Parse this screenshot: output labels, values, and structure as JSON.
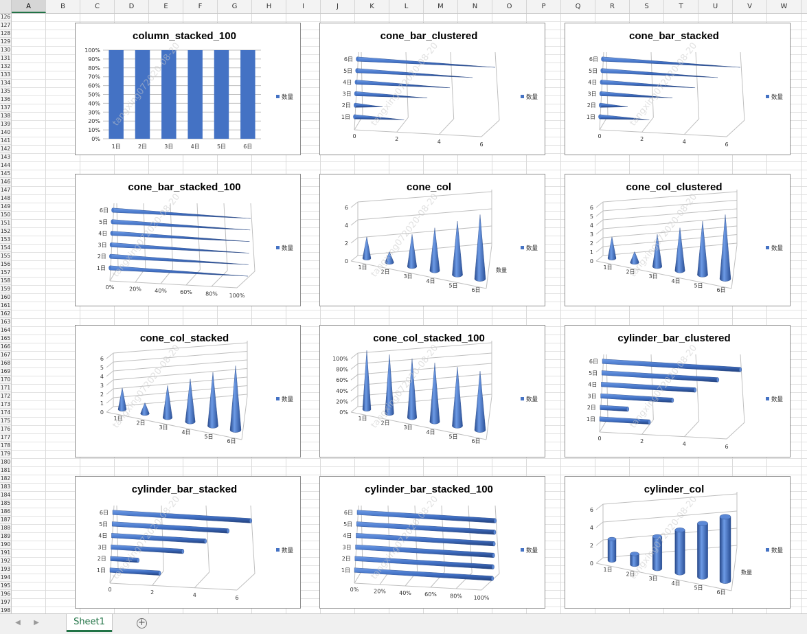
{
  "columns": [
    "A",
    "B",
    "C",
    "D",
    "E",
    "F",
    "G",
    "H",
    "I",
    "J",
    "K",
    "L",
    "M",
    "N",
    "O",
    "P",
    "Q",
    "R",
    "S",
    "T",
    "U",
    "V",
    "W"
  ],
  "selected_column": "A",
  "first_row": 126,
  "row_count": 77,
  "sheet_tab": "Sheet1",
  "add_sheet_symbol": "+",
  "watermark": "tangxing072020-08-20",
  "legend_label": "数量",
  "accent_color": "#4472C4",
  "charts": [
    {
      "title": "column_stacked_100",
      "type": "column_stacked_100"
    },
    {
      "title": "cone_bar_clustered",
      "type": "cone_bar_clustered"
    },
    {
      "title": "cone_bar_stacked",
      "type": "cone_bar_stacked"
    },
    {
      "title": "cone_bar_stacked_100",
      "type": "cone_bar_stacked_100"
    },
    {
      "title": "cone_col",
      "type": "cone_col"
    },
    {
      "title": "cone_col_clustered",
      "type": "cone_col_clustered"
    },
    {
      "title": "cone_col_stacked",
      "type": "cone_col_stacked"
    },
    {
      "title": "cone_col_stacked_100",
      "type": "cone_col_stacked_100"
    },
    {
      "title": "cylinder_bar_clustered",
      "type": "cylinder_bar_clustered"
    },
    {
      "title": "cylinder_bar_stacked",
      "type": "cylinder_bar_stacked"
    },
    {
      "title": "cylinder_bar_stacked_100",
      "type": "cylinder_bar_stacked_100"
    },
    {
      "title": "cylinder_col",
      "type": "cylinder_col"
    }
  ],
  "chart_data": [
    {
      "type": "bar",
      "title": "column_stacked_100",
      "categories": [
        "1日",
        "2日",
        "3日",
        "4日",
        "5日",
        "6日"
      ],
      "series": [
        {
          "name": "数量",
          "values": [
            100,
            100,
            100,
            100,
            100,
            100
          ]
        }
      ],
      "ylim": [
        0,
        100
      ],
      "yticks": [
        "0%",
        "10%",
        "20%",
        "30%",
        "40%",
        "50%",
        "60%",
        "70%",
        "80%",
        "90%",
        "100%"
      ],
      "legend": "right"
    },
    {
      "type": "bar",
      "title": "cone_bar_clustered",
      "categories": [
        "1日",
        "2日",
        "3日",
        "4日",
        "5日",
        "6日"
      ],
      "series": [
        {
          "name": "数量",
          "values": [
            2,
            1,
            3,
            4,
            5,
            6
          ]
        }
      ],
      "xlim": [
        0,
        6
      ],
      "xticks": [
        "0",
        "2",
        "4",
        "6"
      ],
      "legend": "right"
    },
    {
      "type": "bar",
      "title": "cone_bar_stacked",
      "categories": [
        "1日",
        "2日",
        "3日",
        "4日",
        "5日",
        "6日"
      ],
      "series": [
        {
          "name": "数量",
          "values": [
            2,
            1,
            3,
            4,
            5,
            6
          ]
        }
      ],
      "xlim": [
        0,
        6
      ],
      "xticks": [
        "0",
        "2",
        "4",
        "6"
      ],
      "legend": "right"
    },
    {
      "type": "bar",
      "title": "cone_bar_stacked_100",
      "categories": [
        "1日",
        "2日",
        "3日",
        "4日",
        "5日",
        "6日"
      ],
      "series": [
        {
          "name": "数量",
          "values": [
            100,
            100,
            100,
            100,
            100,
            100
          ]
        }
      ],
      "xlim": [
        0,
        100
      ],
      "xticks": [
        "0%",
        "20%",
        "40%",
        "60%",
        "80%",
        "100%"
      ],
      "legend": "right"
    },
    {
      "type": "bar",
      "title": "cone_col",
      "categories": [
        "1日",
        "2日",
        "3日",
        "4日",
        "5日",
        "6日"
      ],
      "series": [
        {
          "name": "数量",
          "values": [
            2,
            1,
            3,
            4,
            5,
            6
          ]
        }
      ],
      "ylim": [
        0,
        6
      ],
      "yticks": [
        "0",
        "2",
        "4",
        "6"
      ],
      "depth_label": "数量",
      "legend": "right"
    },
    {
      "type": "bar",
      "title": "cone_col_clustered",
      "categories": [
        "1日",
        "2日",
        "3日",
        "4日",
        "5日",
        "6日"
      ],
      "series": [
        {
          "name": "数量",
          "values": [
            2,
            1,
            3,
            4,
            5,
            6
          ]
        }
      ],
      "ylim": [
        0,
        6
      ],
      "yticks": [
        "0",
        "1",
        "2",
        "3",
        "4",
        "5",
        "6"
      ],
      "legend": "right"
    },
    {
      "type": "bar",
      "title": "cone_col_stacked",
      "categories": [
        "1日",
        "2日",
        "3日",
        "4日",
        "5日",
        "6日"
      ],
      "series": [
        {
          "name": "数量",
          "values": [
            2,
            1,
            3,
            4,
            5,
            6
          ]
        }
      ],
      "ylim": [
        0,
        6
      ],
      "yticks": [
        "0",
        "1",
        "2",
        "3",
        "4",
        "5",
        "6"
      ],
      "legend": "right"
    },
    {
      "type": "bar",
      "title": "cone_col_stacked_100",
      "categories": [
        "1日",
        "2日",
        "3日",
        "4日",
        "5日",
        "6日"
      ],
      "series": [
        {
          "name": "数量",
          "values": [
            100,
            100,
            100,
            100,
            100,
            100
          ]
        }
      ],
      "ylim": [
        0,
        100
      ],
      "yticks": [
        "0%",
        "20%",
        "40%",
        "60%",
        "80%",
        "100%"
      ],
      "legend": "right"
    },
    {
      "type": "bar",
      "title": "cylinder_bar_clustered",
      "categories": [
        "1日",
        "2日",
        "3日",
        "4日",
        "5日",
        "6日"
      ],
      "series": [
        {
          "name": "数量",
          "values": [
            2,
            1,
            3,
            4,
            5,
            6
          ]
        }
      ],
      "xlim": [
        0,
        6
      ],
      "xticks": [
        "0",
        "2",
        "4",
        "6"
      ],
      "legend": "right"
    },
    {
      "type": "bar",
      "title": "cylinder_bar_stacked",
      "categories": [
        "1日",
        "2日",
        "3日",
        "4日",
        "5日",
        "6日"
      ],
      "series": [
        {
          "name": "数量",
          "values": [
            2,
            1,
            3,
            4,
            5,
            6
          ]
        }
      ],
      "xlim": [
        0,
        6
      ],
      "xticks": [
        "0",
        "2",
        "4",
        "6"
      ],
      "legend": "right"
    },
    {
      "type": "bar",
      "title": "cylinder_bar_stacked_100",
      "categories": [
        "1日",
        "2日",
        "3日",
        "4日",
        "5日",
        "6日"
      ],
      "series": [
        {
          "name": "数量",
          "values": [
            100,
            100,
            100,
            100,
            100,
            100
          ]
        }
      ],
      "xlim": [
        0,
        100
      ],
      "xticks": [
        "0%",
        "20%",
        "40%",
        "60%",
        "80%",
        "100%"
      ],
      "legend": "right"
    },
    {
      "type": "bar",
      "title": "cylinder_col",
      "categories": [
        "1日",
        "2日",
        "3日",
        "4日",
        "5日",
        "6日"
      ],
      "series": [
        {
          "name": "数量",
          "values": [
            2,
            1,
            3,
            4,
            5,
            6
          ]
        }
      ],
      "ylim": [
        0,
        6
      ],
      "yticks": [
        "0",
        "2",
        "4",
        "6"
      ],
      "depth_label": "数量",
      "legend": "right"
    }
  ]
}
